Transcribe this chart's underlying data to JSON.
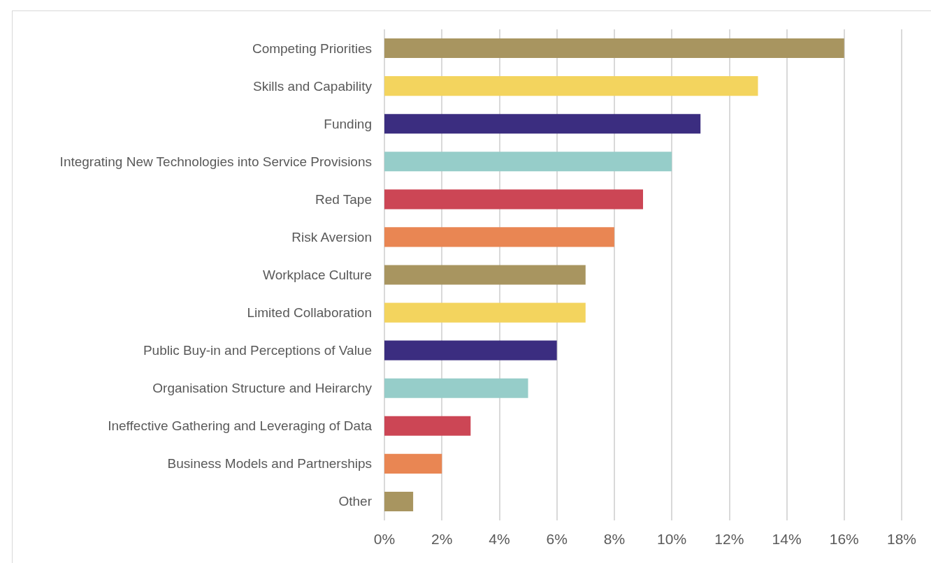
{
  "chart_data": {
    "type": "bar",
    "orientation": "horizontal",
    "categories": [
      "Competing Priorities",
      "Skills and Capability",
      "Funding",
      "Integrating New Technologies into Service Provisions",
      "Red Tape",
      "Risk Aversion",
      "Workplace Culture",
      "Limited Collaboration",
      "Public Buy-in and Perceptions of Value",
      "Organisation Structure and Heirarchy",
      "Ineffective Gathering and Leveraging of Data",
      "Business Models and Partnerships",
      "Other"
    ],
    "values": [
      16,
      13,
      11,
      10,
      9,
      8,
      7,
      7,
      6,
      5,
      3,
      2,
      1
    ],
    "colors": [
      "#a89560",
      "#f3d45e",
      "#3b2d80",
      "#96cdc9",
      "#cc4655",
      "#e98653",
      "#a89560",
      "#f3d45e",
      "#3b2d80",
      "#96cdc9",
      "#cc4655",
      "#e98653",
      "#a89560"
    ],
    "xlim": [
      0,
      18
    ],
    "xticks": [
      {
        "value": 0,
        "label": "0%"
      },
      {
        "value": 2,
        "label": "2%"
      },
      {
        "value": 4,
        "label": "4%"
      },
      {
        "value": 6,
        "label": "6%"
      },
      {
        "value": 8,
        "label": "8%"
      },
      {
        "value": 10,
        "label": "10%"
      },
      {
        "value": 12,
        "label": "12%"
      },
      {
        "value": 14,
        "label": "14%"
      },
      {
        "value": 16,
        "label": "16%"
      },
      {
        "value": 18,
        "label": "18%"
      }
    ],
    "grid": "x"
  }
}
